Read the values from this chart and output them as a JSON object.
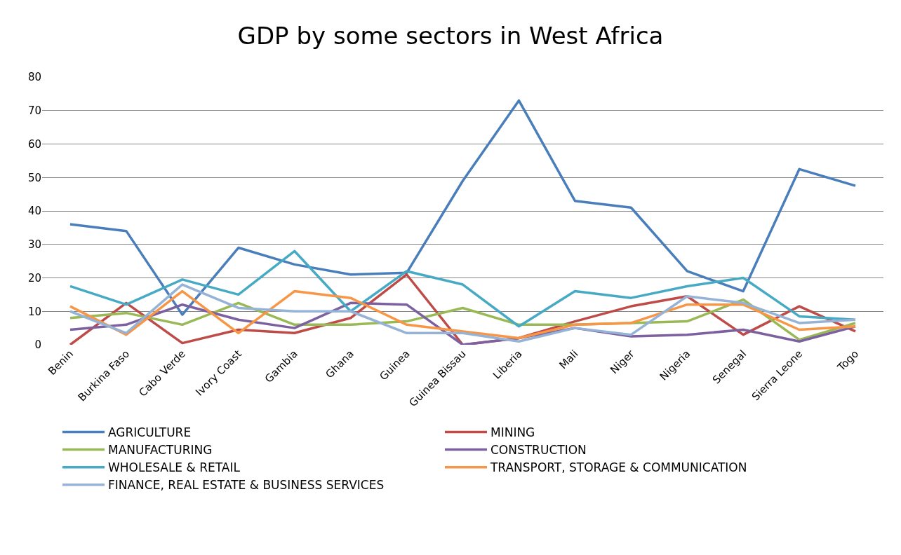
{
  "chart_data": {
    "type": "line",
    "title": "GDP by some sectors in West Africa",
    "categories": [
      "Benin",
      "Burkina Faso",
      "Cabo Verde",
      "Ivory Coast",
      "Gambia",
      "Ghana",
      "Guinea",
      "Guinea Bissau",
      "Liberia",
      "Mali",
      "Niger",
      "Nigeria",
      "Senegal",
      "Sierra Leone",
      "Togo"
    ],
    "series": [
      {
        "name": "AGRICULTURE",
        "color": "#4a7ebb",
        "values": [
          36,
          34,
          9,
          29,
          24,
          21,
          21.5,
          49,
          73,
          43,
          41,
          22,
          16,
          52.5,
          47.5
        ]
      },
      {
        "name": "MINING",
        "color": "#be4b48",
        "values": [
          0,
          12.5,
          0.5,
          4.5,
          3.5,
          8,
          21,
          0,
          2,
          7,
          11.5,
          14.5,
          3,
          11.5,
          4
        ]
      },
      {
        "name": "MANUFACTURING",
        "color": "#98b954",
        "values": [
          8,
          9.5,
          6,
          12.5,
          6,
          6,
          7,
          11,
          6,
          6,
          6.5,
          7,
          13.5,
          1.5,
          6.5
        ]
      },
      {
        "name": "CONSTRUCTION",
        "color": "#7d60a0",
        "values": [
          4.5,
          6,
          12,
          7.5,
          5,
          12.5,
          12,
          0,
          2,
          5,
          2.5,
          3,
          4.5,
          1,
          5.5
        ]
      },
      {
        "name": "WHOLESALE & RETAIL",
        "color": "#46aac5",
        "values": [
          17.5,
          12,
          19.5,
          15,
          28,
          10,
          22,
          18,
          5.5,
          16,
          14,
          17.5,
          20,
          8.5,
          7.5
        ]
      },
      {
        "name": "TRANSPORT, STORAGE & COMMUNICATION",
        "color": "#f79646",
        "values": [
          11.5,
          3,
          16,
          3.5,
          16,
          14,
          6,
          4,
          2,
          6,
          6.5,
          12,
          12,
          4.5,
          5.5
        ]
      },
      {
        "name": "FINANCE, REAL ESTATE & BUSINESS SERVICES",
        "color": "#95b3d7",
        "values": [
          10,
          3.5,
          18,
          11,
          10,
          10,
          3.5,
          3.5,
          1,
          5,
          3,
          14.5,
          12.5,
          6.5,
          7.5
        ]
      }
    ],
    "ylim": [
      0,
      80
    ],
    "yticks": [
      0,
      10,
      20,
      30,
      40,
      50,
      60,
      70,
      80
    ],
    "grid": "y",
    "legend": "bottom",
    "marker": "none",
    "line_style": "solid"
  }
}
